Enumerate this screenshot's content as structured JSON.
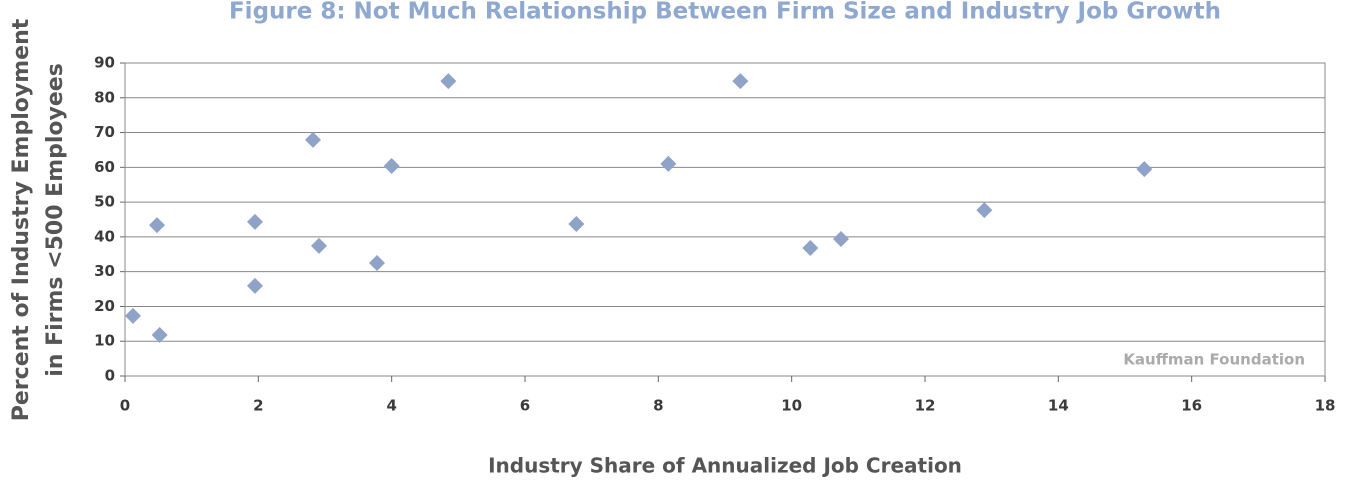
{
  "chart_data": {
    "type": "scatter",
    "title": "Figure 8: Not Much Relationship Between Firm Size and Industry Job Growth",
    "x_label": "Industry Share of Annualized Job Creation",
    "y_label": [
      "Percent of Industry Employment",
      "in Firms <500 Employees"
    ],
    "annotation": "Kauffman Foundation",
    "color": "#8fa3c8",
    "grid": true,
    "x": [
      0.12,
      0.48,
      0.52,
      1.95,
      1.95,
      2.82,
      2.91,
      3.78,
      4.0,
      4.85,
      6.77,
      8.15,
      9.23,
      10.28,
      10.74,
      12.89,
      15.29
    ],
    "values": [
      17.3,
      43.4,
      11.8,
      44.3,
      25.9,
      67.9,
      37.4,
      32.5,
      60.4,
      84.8,
      43.7,
      61.0,
      84.8,
      36.8,
      39.4,
      47.7,
      59.5
    ],
    "xlim": [
      0,
      18
    ],
    "xticks": [
      0,
      2,
      4,
      6,
      8,
      10,
      12,
      14,
      16,
      18
    ],
    "ylim": [
      0,
      90
    ],
    "yticks": [
      0,
      10,
      20,
      30,
      40,
      50,
      60,
      70,
      80,
      90
    ]
  }
}
